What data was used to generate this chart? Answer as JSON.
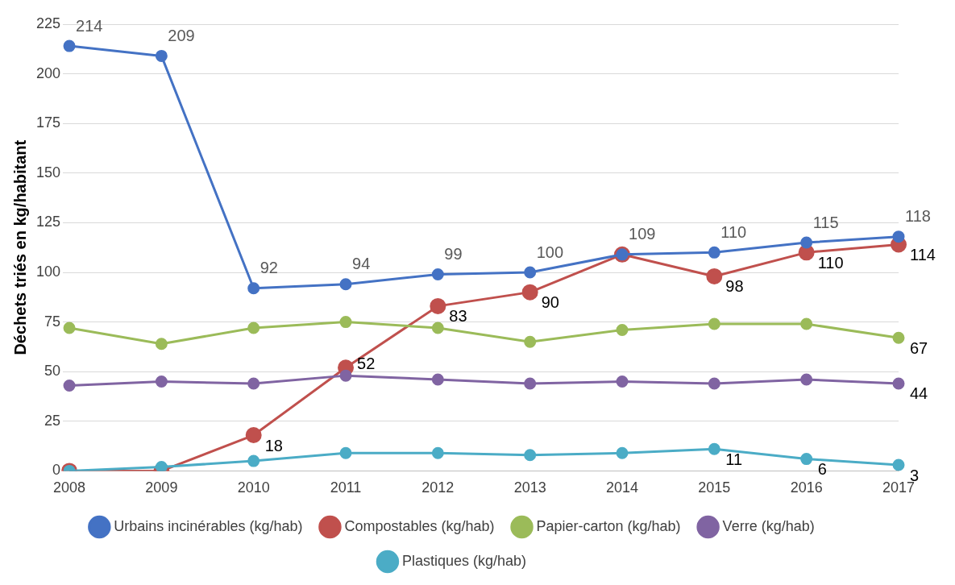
{
  "chart_data": {
    "type": "line",
    "ylabel": "Déchets triés en kg/habitant",
    "categories": [
      "2008",
      "2009",
      "2010",
      "2011",
      "2012",
      "2013",
      "2014",
      "2015",
      "2016",
      "2017"
    ],
    "series": [
      {
        "name": "Urbains incinérables (kg/hab)",
        "color": "#4472c4",
        "values": [
          214,
          209,
          92,
          94,
          99,
          100,
          109,
          110,
          115,
          118
        ],
        "value_labels": [
          "214",
          "209",
          "92",
          "94",
          "99",
          "100",
          "109",
          "110",
          "115",
          "118"
        ]
      },
      {
        "name": "Compostables (kg/hab)",
        "color": "#c0504d",
        "values": [
          0,
          0,
          18,
          52,
          83,
          90,
          109,
          98,
          110,
          114
        ],
        "value_labels": [
          null,
          null,
          "18",
          "52",
          "83",
          "90",
          null,
          "98",
          "110",
          "114"
        ]
      },
      {
        "name": "Papier-carton (kg/hab)",
        "color": "#9bbb59",
        "values": [
          72,
          64,
          72,
          75,
          72,
          65,
          71,
          74,
          74,
          67
        ],
        "value_labels": [
          null,
          null,
          null,
          null,
          null,
          null,
          null,
          null,
          null,
          "67"
        ]
      },
      {
        "name": "Verre (kg/hab)",
        "color": "#8064a2",
        "values": [
          43,
          45,
          44,
          48,
          46,
          44,
          45,
          44,
          46,
          44
        ],
        "value_labels": [
          null,
          null,
          null,
          null,
          null,
          null,
          null,
          null,
          null,
          "44"
        ]
      },
      {
        "name": "Plastiques (kg/hab)",
        "color": "#4bacc6",
        "values": [
          0,
          2,
          5,
          9,
          9,
          8,
          9,
          11,
          6,
          3
        ],
        "value_labels": [
          null,
          null,
          null,
          null,
          null,
          null,
          null,
          "11",
          "6",
          "3"
        ]
      }
    ],
    "ylim": [
      0,
      225
    ],
    "yticks": [
      0,
      25,
      50,
      75,
      100,
      125,
      150,
      175,
      200,
      225
    ],
    "grid": "y",
    "legend": "bottom",
    "marker": "circle",
    "line_style": "solid"
  }
}
